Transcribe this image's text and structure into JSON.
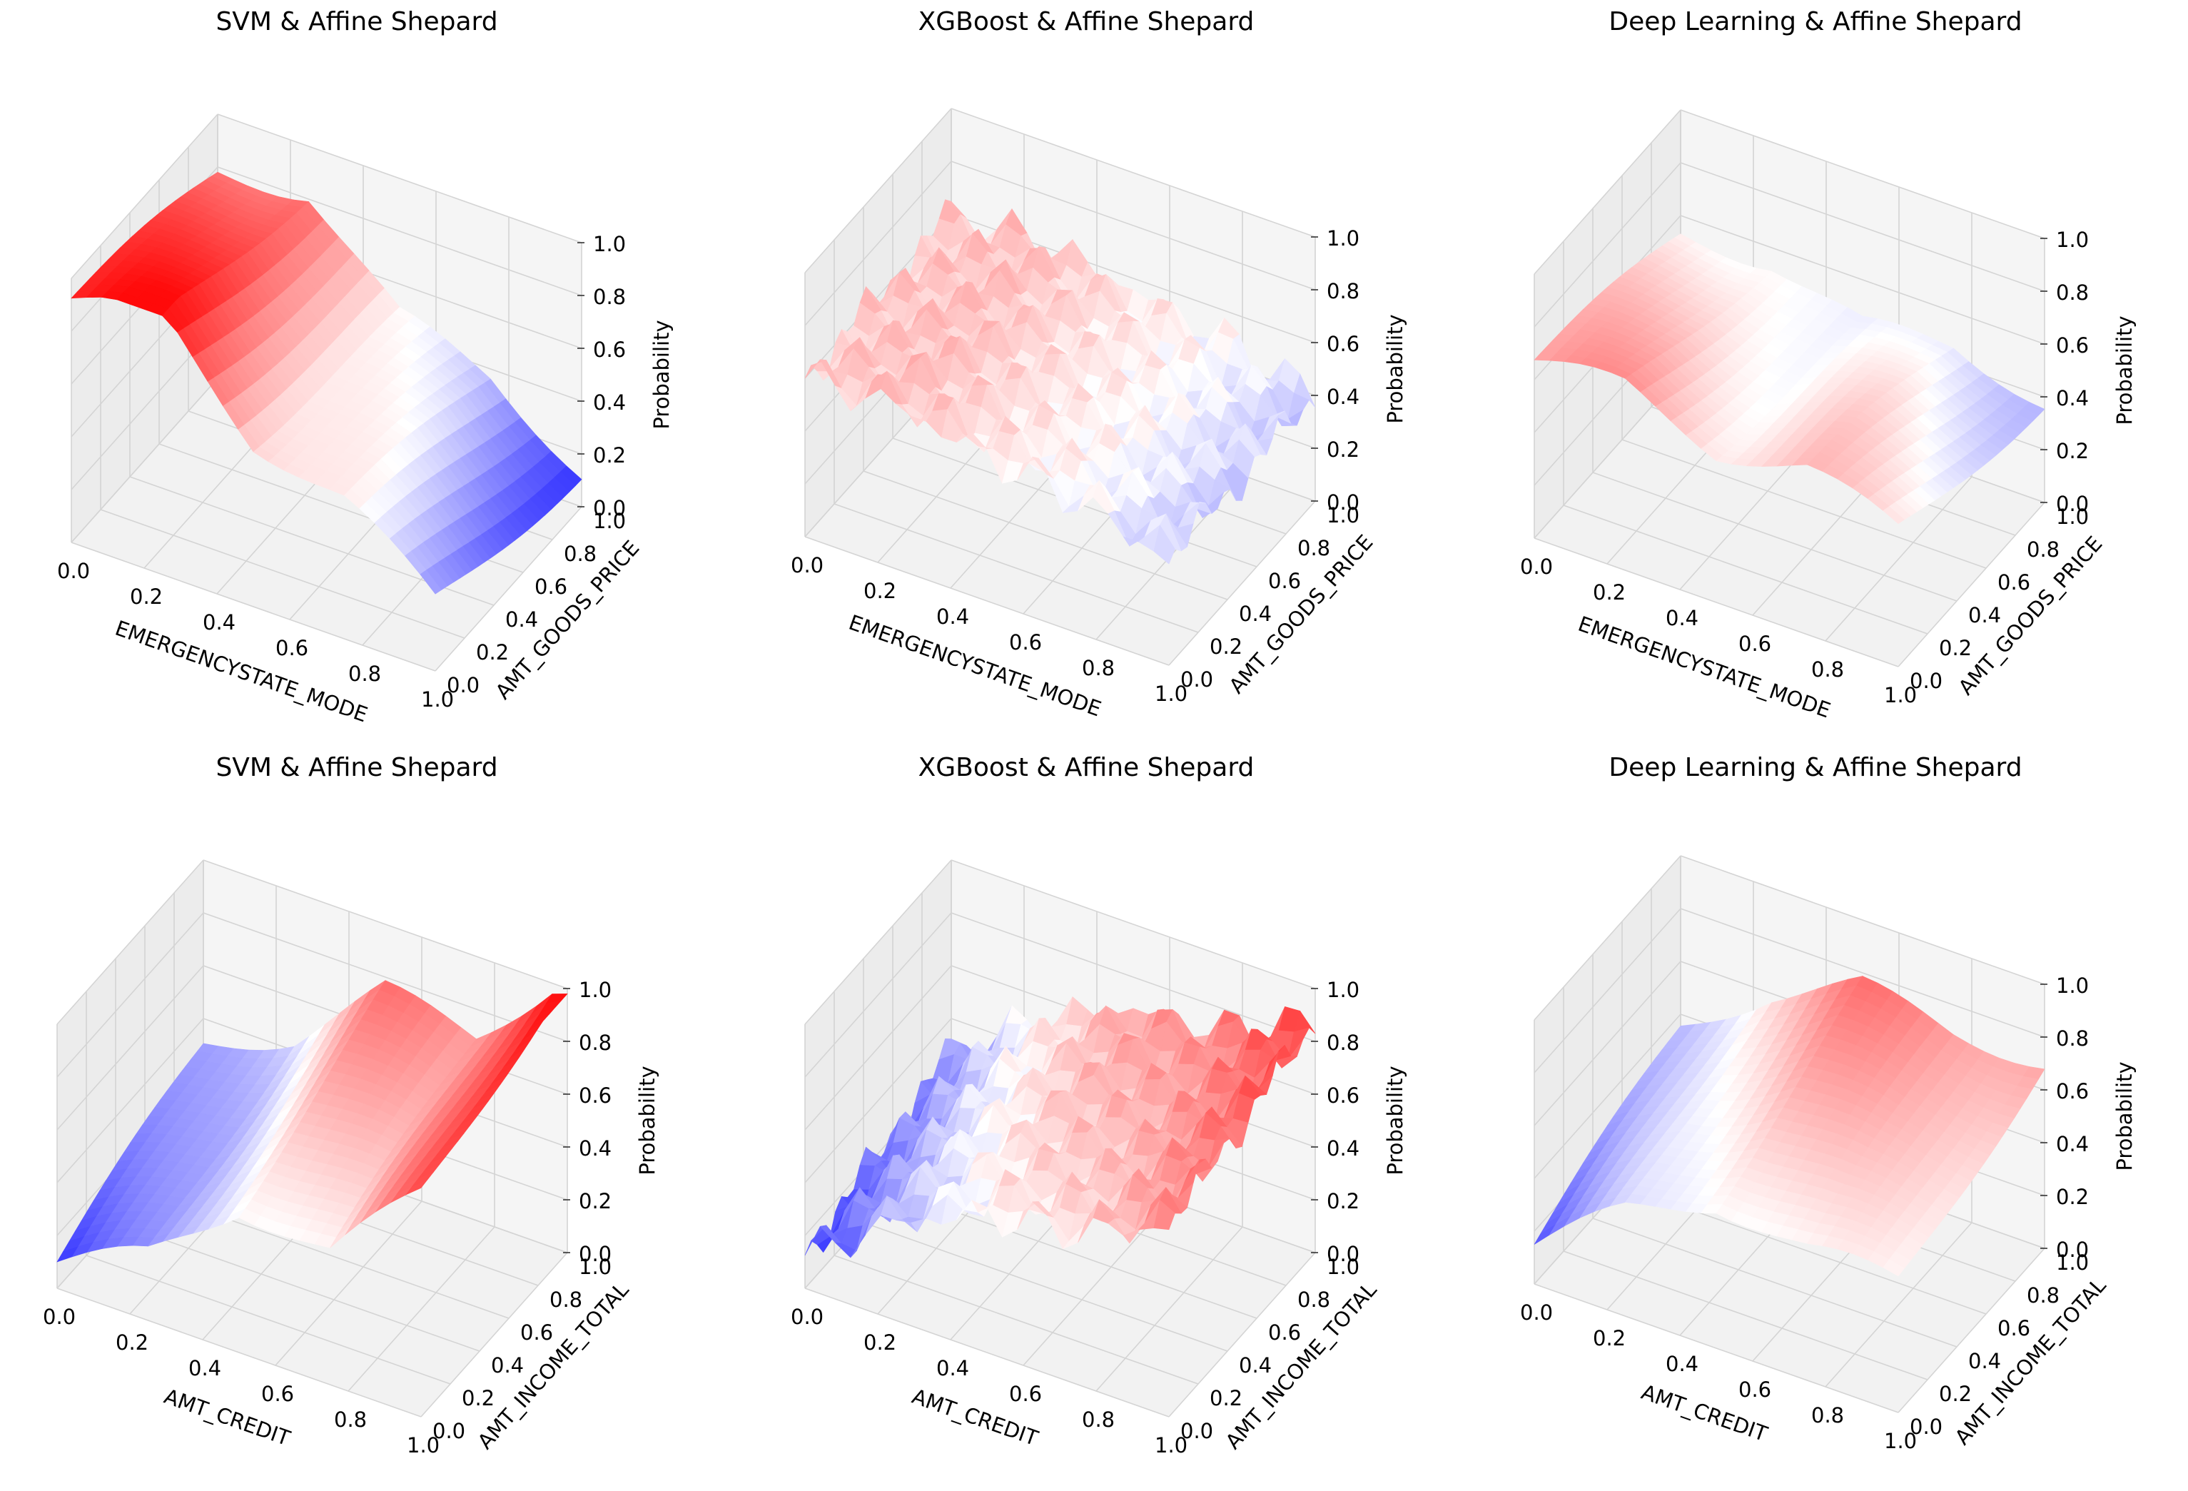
{
  "figure": {
    "rows": 2,
    "cols": 3
  },
  "chart_data": [
    {
      "type": "surface3d",
      "title": "SVM & Affine Shepard",
      "xlabel": "EMERGENCYSTATE_MODE",
      "ylabel": "AMT_GOODS_PRICE",
      "zlabel": "Probability",
      "xlim": [
        0,
        1
      ],
      "ylim": [
        0,
        1
      ],
      "zlim": [
        0,
        1
      ],
      "xticks": [
        "0.0",
        "0.2",
        "0.4",
        "0.6",
        "0.8",
        "1.0"
      ],
      "yticks": [
        "0.0",
        "0.2",
        "0.4",
        "0.6",
        "0.8",
        "1.0"
      ],
      "zticks": [
        "0.0",
        "0.2",
        "0.4",
        "0.6",
        "0.8",
        "1.0"
      ],
      "colormap": "bwr",
      "surface_profile": {
        "x": [
          0.0,
          0.25,
          0.5,
          0.75,
          1.0
        ],
        "probability_along_x": [
          0.85,
          0.9,
          0.55,
          0.45,
          0.2
        ],
        "trend_along_y": "slight decrease"
      }
    },
    {
      "type": "surface3d",
      "title": "XGBoost & Affine Shepard",
      "xlabel": "EMERGENCYSTATE_MODE",
      "ylabel": "AMT_GOODS_PRICE",
      "zlabel": "Probability",
      "xlim": [
        0,
        1
      ],
      "ylim": [
        0,
        1
      ],
      "zlim": [
        0,
        1
      ],
      "xticks": [
        "0.0",
        "0.2",
        "0.4",
        "0.6",
        "0.8",
        "1.0"
      ],
      "yticks": [
        "0.0",
        "0.2",
        "0.4",
        "0.6",
        "0.8",
        "1.0"
      ],
      "zticks": [
        "0.0",
        "0.2",
        "0.4",
        "0.6",
        "0.8",
        "1.0"
      ],
      "colormap": "bwr",
      "surface_profile": {
        "x": [
          0.0,
          0.25,
          0.5,
          0.75,
          1.0
        ],
        "probability_along_x": [
          0.6,
          0.62,
          0.55,
          0.5,
          0.4
        ],
        "trend_along_y": "noisy, roughly flat"
      }
    },
    {
      "type": "surface3d",
      "title": "Deep Learning & Affine Shepard",
      "xlabel": "EMERGENCYSTATE_MODE",
      "ylabel": "AMT_GOODS_PRICE",
      "zlabel": "Probability",
      "xlim": [
        0,
        1
      ],
      "ylim": [
        0,
        1
      ],
      "zlim": [
        0,
        1
      ],
      "xticks": [
        "0.0",
        "0.2",
        "0.4",
        "0.6",
        "0.8",
        "1.0"
      ],
      "yticks": [
        "0.0",
        "0.2",
        "0.4",
        "0.6",
        "0.8",
        "1.0"
      ],
      "zticks": [
        "0.0",
        "0.2",
        "0.4",
        "0.6",
        "0.8",
        "1.0"
      ],
      "colormap": "bwr",
      "surface_profile": {
        "x": [
          0.0,
          0.25,
          0.5,
          0.75,
          1.0
        ],
        "probability_along_x": [
          0.6,
          0.62,
          0.5,
          0.55,
          0.45
        ],
        "trend_along_y": "slight decrease"
      }
    },
    {
      "type": "surface3d",
      "title": "SVM & Affine Shepard",
      "xlabel": "AMT_CREDIT",
      "ylabel": "AMT_INCOME_TOTAL",
      "zlabel": "Probability",
      "xlim": [
        0,
        1
      ],
      "ylim": [
        0,
        1
      ],
      "zlim": [
        0,
        1
      ],
      "xticks": [
        "0.0",
        "0.2",
        "0.4",
        "0.6",
        "0.8",
        "1.0"
      ],
      "yticks": [
        "0.0",
        "0.2",
        "0.4",
        "0.6",
        "0.8",
        "1.0"
      ],
      "zticks": [
        "0.0",
        "0.2",
        "0.4",
        "0.6",
        "0.8",
        "1.0"
      ],
      "colormap": "bwr",
      "surface_profile": {
        "x": [
          0.0,
          0.25,
          0.5,
          0.75,
          1.0
        ],
        "probability_along_x": [
          0.2,
          0.35,
          0.65,
          0.6,
          0.95
        ],
        "trend_along_y": "increase"
      }
    },
    {
      "type": "surface3d",
      "title": "XGBoost & Affine Shepard",
      "xlabel": "AMT_CREDIT",
      "ylabel": "AMT_INCOME_TOTAL",
      "zlabel": "Probability",
      "xlim": [
        0,
        1
      ],
      "ylim": [
        0,
        1
      ],
      "zlim": [
        0,
        1
      ],
      "xticks": [
        "0.0",
        "0.2",
        "0.4",
        "0.6",
        "0.8",
        "1.0"
      ],
      "yticks": [
        "0.0",
        "0.2",
        "0.4",
        "0.6",
        "0.8",
        "1.0"
      ],
      "zticks": [
        "0.0",
        "0.2",
        "0.4",
        "0.6",
        "0.8",
        "1.0"
      ],
      "colormap": "bwr",
      "surface_profile": {
        "x": [
          0.0,
          0.25,
          0.5,
          0.75,
          1.0
        ],
        "probability_along_x": [
          0.2,
          0.45,
          0.6,
          0.65,
          0.8
        ],
        "trend_along_y": "noisy increase"
      }
    },
    {
      "type": "surface3d",
      "title": "Deep Learning & Affine Shepard",
      "xlabel": "AMT_CREDIT",
      "ylabel": "AMT_INCOME_TOTAL",
      "zlabel": "Probability",
      "xlim": [
        0,
        1
      ],
      "ylim": [
        0,
        1
      ],
      "zlim": [
        0,
        1
      ],
      "xticks": [
        "0.0",
        "0.2",
        "0.4",
        "0.6",
        "0.8",
        "1.0"
      ],
      "yticks": [
        "0.0",
        "0.2",
        "0.4",
        "0.6",
        "0.8",
        "1.0"
      ],
      "zticks": [
        "0.0",
        "0.2",
        "0.4",
        "0.6",
        "0.8",
        "1.0"
      ],
      "colormap": "bwr",
      "surface_profile": {
        "x": [
          0.0,
          0.25,
          0.5,
          0.75,
          1.0
        ],
        "probability_along_x": [
          0.25,
          0.5,
          0.65,
          0.6,
          0.6
        ],
        "trend_along_y": "increase"
      }
    }
  ]
}
